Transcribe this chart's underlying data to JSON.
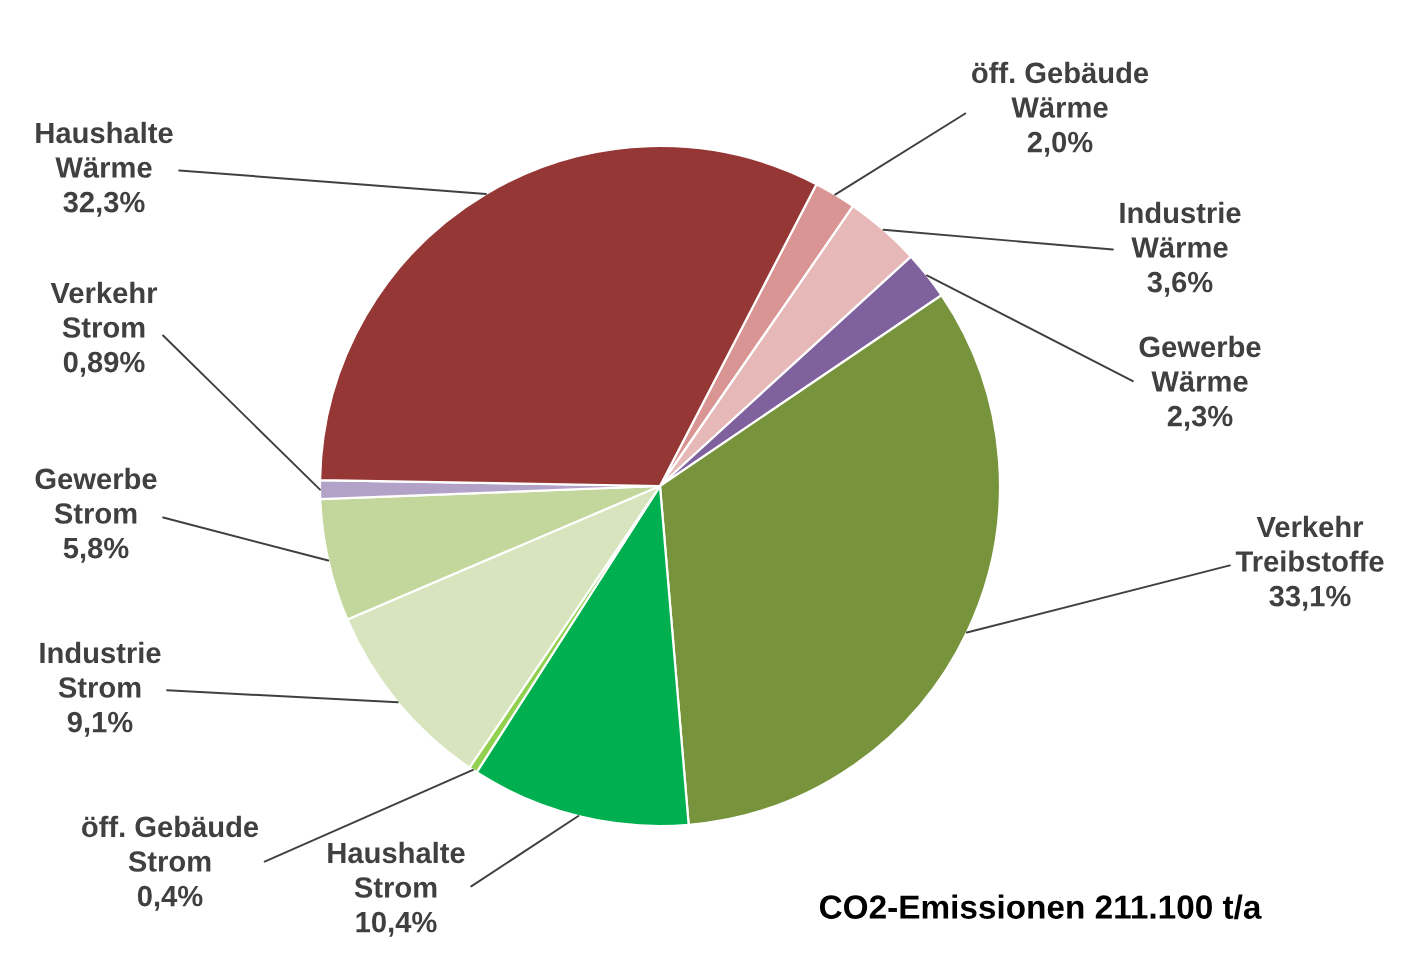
{
  "chart_data": {
    "type": "pie",
    "title": "CO2-Emissionen 211.100 t/a",
    "categories": [
      "öff. Gebäude\nWärme",
      "Industrie\nWärme",
      "Gewerbe\nWärme",
      "Verkehr\nTreibstoffe",
      "Haushalte\nStrom",
      "öff. Gebäude\nStrom",
      "Industrie\nStrom",
      "Gewerbe\nStrom",
      "Verkehr\nStrom",
      "Haushalte\nWärme"
    ],
    "values": [
      2.0,
      3.6,
      2.3,
      33.1,
      10.4,
      0.4,
      9.1,
      5.8,
      0.89,
      32.3
    ],
    "value_labels": [
      "2,0%",
      "3,6%",
      "2,3%",
      "33,1%",
      "10,4%",
      "0,4%",
      "9,1%",
      "5,8%",
      "0,89%",
      "32,3%"
    ],
    "colors": [
      "#d99594",
      "#e6b9b8",
      "#7f619e",
      "#77933c",
      "#00b050",
      "#92d050",
      "#d7e4bd",
      "#c3d69b",
      "#b3a2c7",
      "#953735"
    ],
    "legend": false
  }
}
